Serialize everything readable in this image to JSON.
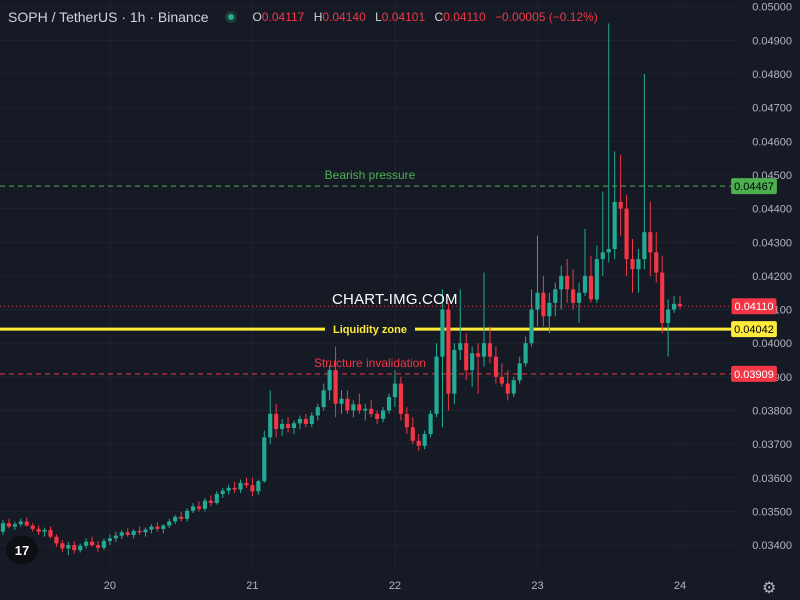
{
  "header": {
    "symbol_title": "SOPH / TetherUS · 1h · Binance",
    "ohlc": [
      {
        "key": "O",
        "value": "0.04117"
      },
      {
        "key": "H",
        "value": "0.04140"
      },
      {
        "key": "L",
        "value": "0.04101"
      },
      {
        "key": "C",
        "value": "0.04110"
      }
    ],
    "change": "−0.00005 (−0.12%)"
  },
  "watermark": "CHART-IMG.COM",
  "colors": {
    "background": "#161a25",
    "up": "#22ab94",
    "down": "#f23645",
    "bearish_line": "#4caf50",
    "liquidity_line": "#ffeb3b",
    "invalidation_line": "#f23645"
  },
  "chart_data": {
    "type": "candlestick",
    "y_range": [
      0.0332,
      0.0502
    ],
    "y_ticks": [
      "0.05000",
      "0.04900",
      "0.04800",
      "0.04700",
      "0.04600",
      "0.04500",
      "0.04400",
      "0.04300",
      "0.04200",
      "0.04100",
      "0.04000",
      "0.03900",
      "0.03800",
      "0.03700",
      "0.03600",
      "0.03500",
      "0.03400"
    ],
    "x_ticks": [
      "20",
      "21",
      "22",
      "23",
      "24"
    ],
    "price_labels": [
      {
        "label": "0.04467",
        "value": 0.04467,
        "color": "#4caf50",
        "text_color": "#000000"
      },
      {
        "label": "0.04110",
        "value": 0.0411,
        "color": "#f23645",
        "text_color": "#ffffff"
      },
      {
        "label": "0.04042",
        "value": 0.04042,
        "color": "#ffeb3b",
        "text_color": "#000000"
      },
      {
        "label": "0.03909",
        "value": 0.03909,
        "color": "#f23645",
        "text_color": "#ffffff"
      }
    ],
    "levels": [
      {
        "name": "Bearish pressure",
        "value": 0.04467,
        "style": "dashed",
        "color": "#4caf50"
      },
      {
        "name": "Liquidity zone",
        "value": 0.04042,
        "style": "solid",
        "color": "#ffeb3b"
      },
      {
        "name": "Structure invalidation",
        "value": 0.03909,
        "style": "dashed",
        "color": "#f23645"
      },
      {
        "name": "",
        "value": 0.0411,
        "style": "dotted",
        "color": "#f23645"
      }
    ],
    "candles": [
      [
        0.0344,
        0.03475,
        0.0343,
        0.03465
      ],
      [
        0.03465,
        0.03478,
        0.0345,
        0.03455
      ],
      [
        0.03455,
        0.0347,
        0.03445,
        0.03462
      ],
      [
        0.03462,
        0.0348,
        0.03455,
        0.0347
      ],
      [
        0.0347,
        0.03482,
        0.03455,
        0.03458
      ],
      [
        0.03458,
        0.03465,
        0.0344,
        0.03448
      ],
      [
        0.03448,
        0.03458,
        0.0343,
        0.0344
      ],
      [
        0.0344,
        0.03452,
        0.03425,
        0.03445
      ],
      [
        0.03445,
        0.03455,
        0.0342,
        0.03425
      ],
      [
        0.03425,
        0.03432,
        0.03395,
        0.03405
      ],
      [
        0.03405,
        0.03415,
        0.0338,
        0.0339
      ],
      [
        0.0339,
        0.0341,
        0.0337,
        0.034
      ],
      [
        0.034,
        0.03412,
        0.03375,
        0.03385
      ],
      [
        0.03385,
        0.03405,
        0.03378,
        0.03398
      ],
      [
        0.03398,
        0.0342,
        0.0339,
        0.0341
      ],
      [
        0.0341,
        0.03425,
        0.03395,
        0.034
      ],
      [
        0.034,
        0.03412,
        0.0338,
        0.03392
      ],
      [
        0.03392,
        0.0342,
        0.03385,
        0.03412
      ],
      [
        0.03412,
        0.03432,
        0.034,
        0.0342
      ],
      [
        0.0342,
        0.0344,
        0.0341,
        0.03428
      ],
      [
        0.03428,
        0.03445,
        0.03418,
        0.03438
      ],
      [
        0.03438,
        0.0345,
        0.03425,
        0.0343
      ],
      [
        0.0343,
        0.03448,
        0.0342,
        0.03442
      ],
      [
        0.03442,
        0.03455,
        0.0343,
        0.03438
      ],
      [
        0.03438,
        0.03452,
        0.03425,
        0.03446
      ],
      [
        0.03446,
        0.03462,
        0.03435,
        0.03455
      ],
      [
        0.03455,
        0.03468,
        0.0344,
        0.03448
      ],
      [
        0.03448,
        0.03462,
        0.03435,
        0.03458
      ],
      [
        0.03458,
        0.03478,
        0.0345,
        0.0347
      ],
      [
        0.0347,
        0.0349,
        0.03462,
        0.03484
      ],
      [
        0.03484,
        0.035,
        0.0347,
        0.03478
      ],
      [
        0.03478,
        0.0351,
        0.0347,
        0.03502
      ],
      [
        0.03502,
        0.03525,
        0.03495,
        0.03515
      ],
      [
        0.03515,
        0.0353,
        0.035,
        0.03508
      ],
      [
        0.03508,
        0.0354,
        0.035,
        0.03532
      ],
      [
        0.03532,
        0.03548,
        0.03515,
        0.03525
      ],
      [
        0.03525,
        0.0356,
        0.0352,
        0.03552
      ],
      [
        0.03552,
        0.0357,
        0.0354,
        0.03562
      ],
      [
        0.03562,
        0.0358,
        0.0355,
        0.0357
      ],
      [
        0.0357,
        0.03588,
        0.03555,
        0.03565
      ],
      [
        0.03565,
        0.03595,
        0.03555,
        0.03585
      ],
      [
        0.03585,
        0.036,
        0.0357,
        0.03578
      ],
      [
        0.03578,
        0.036,
        0.03545,
        0.0356
      ],
      [
        0.0356,
        0.03595,
        0.0355,
        0.0359
      ],
      [
        0.0359,
        0.0374,
        0.03585,
        0.0372
      ],
      [
        0.0372,
        0.0386,
        0.037,
        0.0379
      ],
      [
        0.0379,
        0.0382,
        0.0372,
        0.03745
      ],
      [
        0.03745,
        0.03775,
        0.03725,
        0.0376
      ],
      [
        0.0376,
        0.0378,
        0.03735,
        0.03748
      ],
      [
        0.03748,
        0.0377,
        0.0373,
        0.03762
      ],
      [
        0.03762,
        0.03785,
        0.03745,
        0.03775
      ],
      [
        0.03775,
        0.0379,
        0.0375,
        0.0376
      ],
      [
        0.0376,
        0.03795,
        0.0375,
        0.03785
      ],
      [
        0.03785,
        0.0382,
        0.0377,
        0.0381
      ],
      [
        0.0381,
        0.0388,
        0.038,
        0.0386
      ],
      [
        0.0386,
        0.03935,
        0.0383,
        0.0392
      ],
      [
        0.0392,
        0.0399,
        0.0378,
        0.0382
      ],
      [
        0.0382,
        0.0386,
        0.0379,
        0.03835
      ],
      [
        0.03835,
        0.0386,
        0.0379,
        0.038
      ],
      [
        0.038,
        0.0383,
        0.0378,
        0.03818
      ],
      [
        0.03818,
        0.0385,
        0.0379,
        0.038
      ],
      [
        0.038,
        0.0382,
        0.0377,
        0.03805
      ],
      [
        0.03805,
        0.0383,
        0.0378,
        0.0379
      ],
      [
        0.0379,
        0.038,
        0.0376,
        0.03775
      ],
      [
        0.03775,
        0.0381,
        0.03765,
        0.038
      ],
      [
        0.038,
        0.0385,
        0.0379,
        0.0384
      ],
      [
        0.0384,
        0.0392,
        0.0381,
        0.0388
      ],
      [
        0.0388,
        0.039,
        0.0377,
        0.0379
      ],
      [
        0.0379,
        0.0381,
        0.0373,
        0.0375
      ],
      [
        0.0375,
        0.0378,
        0.037,
        0.0371
      ],
      [
        0.0371,
        0.0373,
        0.0368,
        0.03695
      ],
      [
        0.03695,
        0.0374,
        0.03685,
        0.0373
      ],
      [
        0.0373,
        0.038,
        0.0372,
        0.0379
      ],
      [
        0.0379,
        0.04,
        0.0378,
        0.0396
      ],
      [
        0.0396,
        0.0416,
        0.0375,
        0.041
      ],
      [
        0.041,
        0.0412,
        0.038,
        0.0385
      ],
      [
        0.0385,
        0.04,
        0.0382,
        0.0398
      ],
      [
        0.0398,
        0.0416,
        0.0395,
        0.04
      ],
      [
        0.04,
        0.0403,
        0.0389,
        0.0392
      ],
      [
        0.0392,
        0.0399,
        0.0387,
        0.0397
      ],
      [
        0.0397,
        0.04,
        0.0385,
        0.0396
      ],
      [
        0.0396,
        0.0421,
        0.0393,
        0.04
      ],
      [
        0.04,
        0.0405,
        0.0394,
        0.0396
      ],
      [
        0.0396,
        0.0399,
        0.0388,
        0.039
      ],
      [
        0.039,
        0.0394,
        0.0387,
        0.0388
      ],
      [
        0.0388,
        0.0392,
        0.0383,
        0.0385
      ],
      [
        0.0385,
        0.039,
        0.0384,
        0.0389
      ],
      [
        0.0389,
        0.0396,
        0.0388,
        0.0394
      ],
      [
        0.0394,
        0.0402,
        0.0393,
        0.04
      ],
      [
        0.04,
        0.0416,
        0.0399,
        0.041
      ],
      [
        0.041,
        0.0432,
        0.0405,
        0.0415
      ],
      [
        0.0415,
        0.042,
        0.0405,
        0.0408
      ],
      [
        0.0408,
        0.0415,
        0.0403,
        0.0412
      ],
      [
        0.0412,
        0.0418,
        0.0408,
        0.0416
      ],
      [
        0.0416,
        0.0423,
        0.041,
        0.042
      ],
      [
        0.042,
        0.0425,
        0.0412,
        0.0416
      ],
      [
        0.0416,
        0.0422,
        0.041,
        0.0412
      ],
      [
        0.0412,
        0.0418,
        0.0406,
        0.0415
      ],
      [
        0.0415,
        0.0434,
        0.0414,
        0.042
      ],
      [
        0.042,
        0.0426,
        0.0412,
        0.0413
      ],
      [
        0.0413,
        0.0429,
        0.0412,
        0.0425
      ],
      [
        0.0425,
        0.0445,
        0.042,
        0.0427
      ],
      [
        0.0427,
        0.0495,
        0.0424,
        0.0428
      ],
      [
        0.0428,
        0.0457,
        0.0425,
        0.0442
      ],
      [
        0.0442,
        0.0456,
        0.0432,
        0.044
      ],
      [
        0.044,
        0.0444,
        0.042,
        0.0425
      ],
      [
        0.0425,
        0.0431,
        0.0415,
        0.0422
      ],
      [
        0.0422,
        0.0428,
        0.0415,
        0.0425
      ],
      [
        0.0425,
        0.048,
        0.0422,
        0.0433
      ],
      [
        0.0433,
        0.0442,
        0.042,
        0.0427
      ],
      [
        0.0427,
        0.0433,
        0.0418,
        0.0421
      ],
      [
        0.0421,
        0.0426,
        0.0403,
        0.0406
      ],
      [
        0.0406,
        0.0413,
        0.0396,
        0.041
      ],
      [
        0.041,
        0.0414,
        0.0409,
        0.04117
      ],
      [
        0.04117,
        0.0414,
        0.04101,
        0.0411
      ]
    ]
  }
}
